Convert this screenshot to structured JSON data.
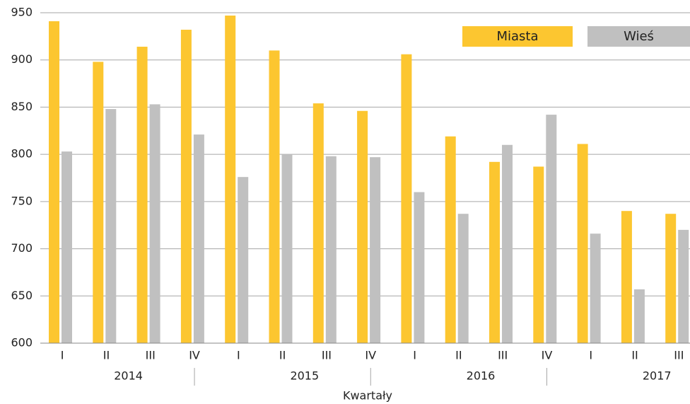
{
  "chart_data": {
    "type": "bar",
    "x_label": "Kwartały",
    "groups": [
      {
        "label": "2014",
        "categories": [
          "I",
          "II",
          "III",
          "IV"
        ]
      },
      {
        "label": "2015",
        "categories": [
          "I",
          "II",
          "III",
          "IV"
        ]
      },
      {
        "label": "2016",
        "categories": [
          "I",
          "II",
          "III",
          "IV"
        ]
      },
      {
        "label": "2017",
        "categories": [
          "I",
          "II",
          "III"
        ]
      }
    ],
    "series": [
      {
        "name": "Miasta",
        "color": "#fcc630",
        "values": [
          941,
          898,
          914,
          932,
          947,
          910,
          854,
          846,
          906,
          819,
          792,
          787,
          811,
          740,
          737
        ]
      },
      {
        "name": "Wieś",
        "color": "#c0c0c0",
        "values": [
          803,
          848,
          853,
          821,
          776,
          800,
          798,
          797,
          760,
          737,
          810,
          842,
          716,
          657,
          720
        ]
      }
    ],
    "ylim": [
      600,
      950
    ],
    "yticks": [
      600,
      650,
      700,
      750,
      800,
      850,
      900,
      950
    ],
    "grid": true,
    "legend": "top-right"
  }
}
